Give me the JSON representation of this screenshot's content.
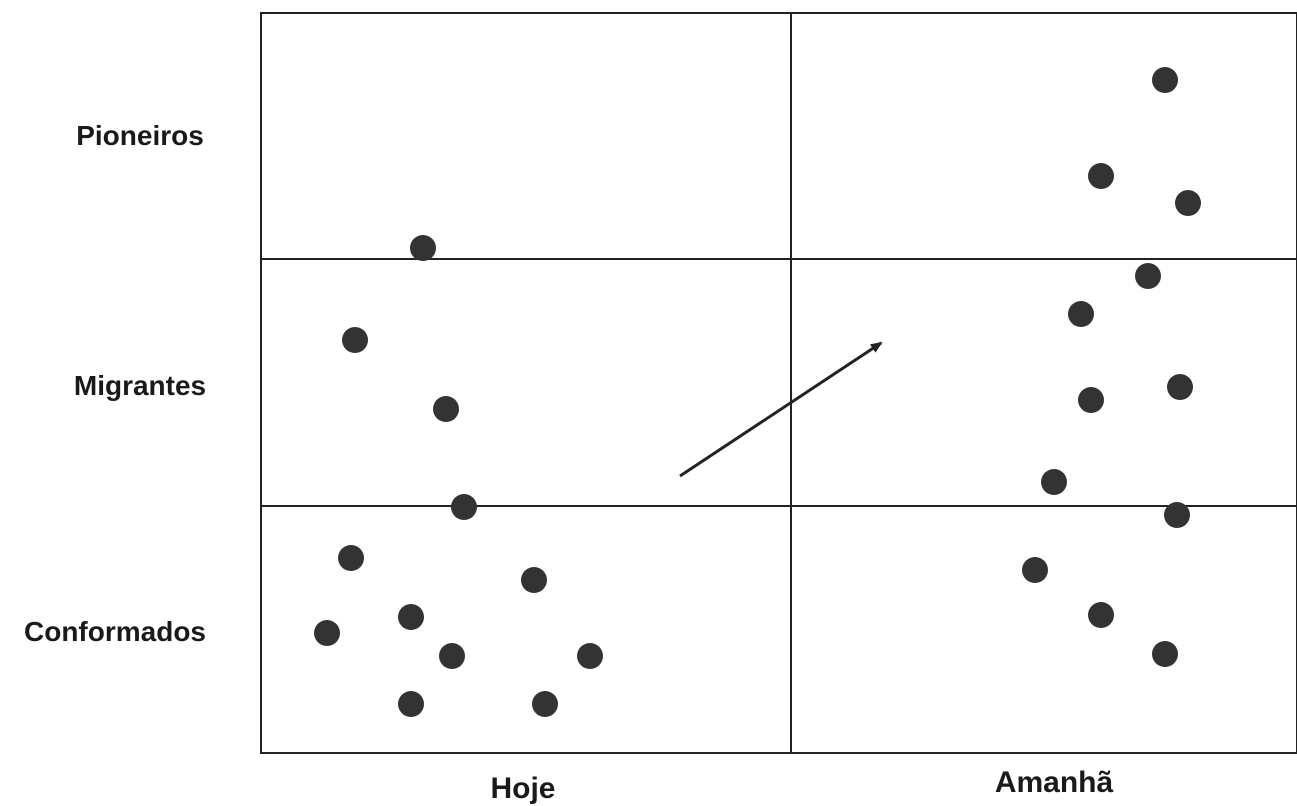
{
  "rows": [
    {
      "label": "Pioneiros"
    },
    {
      "label": "Migrantes"
    },
    {
      "label": "Conformados"
    }
  ],
  "columns": [
    {
      "label": "Hoje"
    },
    {
      "label": "Amanhã"
    }
  ],
  "colors": {
    "dot": "#333333",
    "line": "#222222",
    "text": "#1a1a1a",
    "background": "#ffffff"
  },
  "arrow": {
    "direction": "from Hoje toward Amanhã, upward"
  }
}
